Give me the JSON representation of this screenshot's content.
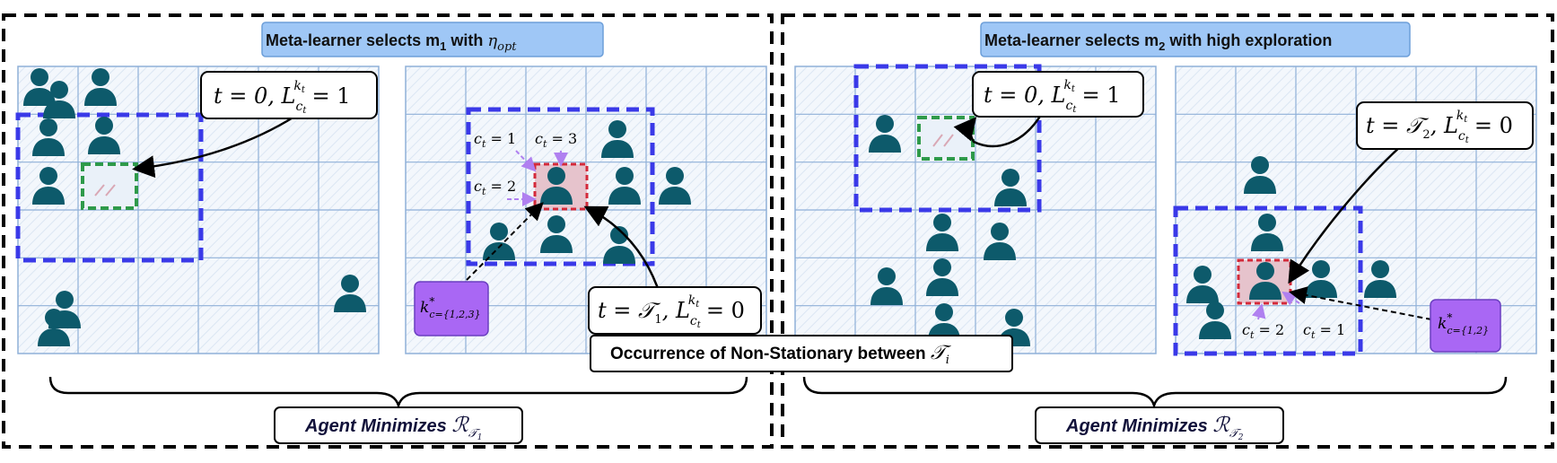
{
  "left": {
    "banner_prefix": "Meta-learner selects m",
    "banner_sub": "1",
    "banner_suffix": " with ",
    "banner_math": "η",
    "banner_math_sub": "opt",
    "grid_a_label_t": "t = 0, L",
    "grid_a_label_sub": "c",
    "grid_a_label_sub2": "t",
    "grid_a_label_sup": "k",
    "grid_a_label_sup2": "t",
    "grid_a_label_val": " = 1",
    "grid_b_c1": "c",
    "grid_b_c1_sub": "t",
    "grid_b_c1_val": " = 1",
    "grid_b_c3_val": " = 3",
    "grid_b_c2_val": " = 2",
    "grid_b_label": "t = 𝒯",
    "grid_b_label_sub": "1",
    "grid_b_label_rest": ", L",
    "grid_b_label_val": " = 0",
    "kstar": "k",
    "kstar_sup": "*",
    "kstar_sub": "c={1,2,3}",
    "agent_label": "Agent Minimizes ",
    "agent_math": "ℛ",
    "agent_math_sub": "𝒯",
    "agent_math_sub2": "1"
  },
  "right": {
    "banner_prefix": "Meta-learner selects m",
    "banner_sub": "2",
    "banner_suffix": " with high exploration",
    "grid_a_label_t": "t = 0, L",
    "grid_a_label_val": " = 1",
    "grid_b_label": "t = 𝒯",
    "grid_b_label_sub": "2",
    "grid_b_label_rest": ", L",
    "grid_b_label_val": " = 0",
    "grid_b_c2_val": " = 2",
    "grid_b_c1_val": " = 1",
    "kstar_sub": "c={1,2}",
    "agent_label": "Agent Minimizes ",
    "agent_math_sub2": "2"
  },
  "middle": {
    "label": "Occurrence of Non-Stationary between ",
    "math": "𝒯",
    "math_sub": "i"
  },
  "colors": {
    "banner_fill": "#9fc7f6",
    "grid_fill": "#f1f6fb",
    "grid_line": "#8fb0d8",
    "person": "#0d5a6b",
    "blue_dash": "#3a39e8",
    "green_dash": "#2e9a4a",
    "red_dash": "#d42a3a",
    "kstar_fill": "#a967f4",
    "purple_arrow": "#b080f0"
  }
}
